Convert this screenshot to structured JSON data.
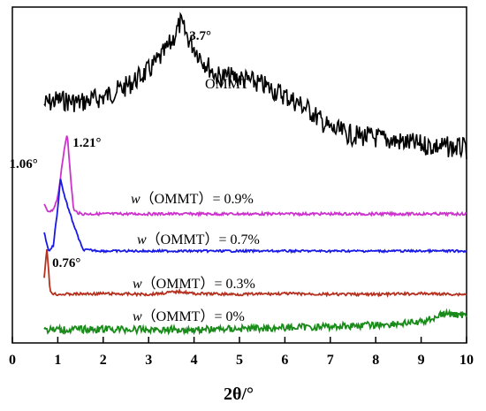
{
  "chart_data": {
    "type": "line",
    "xlabel": "2θ/°",
    "xlim": [
      0,
      10
    ],
    "x_ticks": [
      "0",
      "1",
      "2",
      "3",
      "4",
      "5",
      "6",
      "7",
      "8",
      "9",
      "10"
    ],
    "yticks_shown": false,
    "grid": false,
    "series": [
      {
        "name": "OMMT",
        "label_text": "OMMT",
        "color": "#000000",
        "x": [
          0.7,
          1.0,
          1.5,
          2.0,
          2.5,
          3.0,
          3.3,
          3.5,
          3.7,
          3.9,
          4.2,
          4.5,
          5.0,
          5.5,
          6.0,
          6.5,
          7.0,
          7.5,
          8.0,
          8.5,
          9.0,
          9.5,
          10.0
        ],
        "values": [
          0.0,
          0.05,
          0.02,
          0.08,
          0.2,
          0.38,
          0.55,
          0.7,
          0.92,
          0.72,
          0.5,
          0.32,
          0.3,
          0.22,
          0.1,
          -0.05,
          -0.28,
          -0.35,
          -0.38,
          -0.42,
          -0.46,
          -0.48,
          -0.5
        ]
      },
      {
        "name": "w（OMMT）= 0.9%",
        "label_prefix": "w",
        "label_rest": "（OMMT）= 0.9%",
        "color": "#cc33cc",
        "x": [
          0.7,
          0.8,
          0.9,
          1.0,
          1.1,
          1.15,
          1.21,
          1.27,
          1.35,
          1.5,
          2.0,
          4.0,
          6.0,
          8.0,
          10.0
        ],
        "values": [
          0.12,
          0.02,
          0.05,
          0.25,
          0.7,
          0.95,
          1.15,
          0.6,
          0.05,
          0.0,
          0.0,
          0.0,
          0.0,
          0.0,
          0.0
        ]
      },
      {
        "name": "w（OMMT）= 0.7%",
        "label_prefix": "w",
        "label_rest": "（OMMT）= 0.7%",
        "color": "#1a1ae6",
        "x": [
          0.7,
          0.8,
          0.9,
          1.0,
          1.06,
          1.12,
          1.25,
          1.4,
          1.55,
          2.0,
          4.0,
          6.0,
          8.0,
          10.0
        ],
        "values": [
          0.28,
          0.0,
          0.08,
          0.65,
          1.1,
          0.9,
          0.6,
          0.3,
          0.02,
          0.0,
          0.0,
          0.0,
          0.0,
          0.0
        ]
      },
      {
        "name": "w（OMMT）= 0.3%",
        "label_prefix": "w",
        "label_rest": "（OMMT）= 0.3%",
        "color": "#b5311f",
        "x": [
          0.7,
          0.73,
          0.76,
          0.79,
          0.83,
          0.9,
          1.0,
          2.0,
          3.0,
          3.7,
          4.0,
          5.0,
          6.0,
          7.0,
          8.0,
          9.0,
          10.0
        ],
        "values": [
          0.5,
          0.9,
          1.25,
          0.8,
          0.1,
          0.02,
          0.0,
          0.02,
          0.0,
          0.08,
          0.02,
          0.0,
          0.02,
          0.0,
          0.0,
          0.02,
          0.0
        ]
      },
      {
        "name": "w（OMMT）= 0%",
        "label_prefix": "w",
        "label_rest": "（OMMT）= 0%",
        "color": "#1a8a1a",
        "x": [
          0.7,
          1.0,
          2.0,
          3.0,
          4.0,
          5.0,
          6.0,
          7.0,
          8.0,
          9.0,
          9.5,
          10.0
        ],
        "values": [
          0.0,
          0.0,
          0.02,
          0.0,
          0.0,
          0.04,
          0.08,
          0.12,
          0.18,
          0.28,
          0.6,
          0.55
        ]
      }
    ],
    "annotations": [
      {
        "text": "3.7°",
        "x": 3.7,
        "series": "OMMT"
      },
      {
        "text": "1.21°",
        "x": 1.21,
        "series": "w（OMMT）= 0.9%"
      },
      {
        "text": "1.06°",
        "x": 1.06,
        "series": "w（OMMT）= 0.7%"
      },
      {
        "text": "0.76°",
        "x": 0.76,
        "series": "w（OMMT）= 0.3%"
      }
    ]
  }
}
